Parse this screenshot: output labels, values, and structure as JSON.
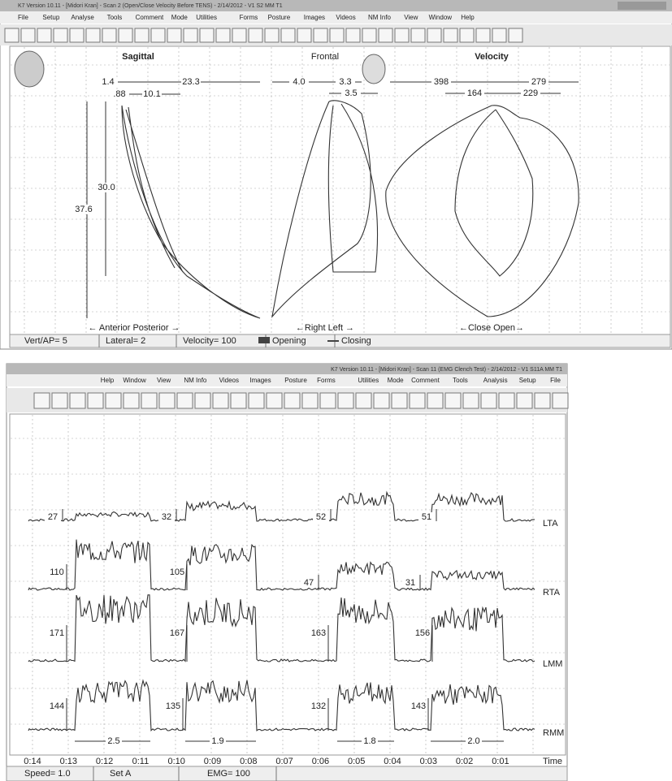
{
  "top_window": {
    "title": "K7 Version 10.11 - [Midori Kran] - Scan 2 (Open/Close Velocity Before TENS) - 2/14/2012 - V1 S2 MM T1",
    "menu": [
      "File",
      "Setup",
      "Analyse",
      "Tools",
      "Comment",
      "Mode",
      "Utilities",
      "Forms",
      "Posture",
      "Images",
      "Videos",
      "NM Info",
      "View",
      "Window",
      "Help"
    ],
    "panels": [
      {
        "title": "Sagittal",
        "axis_label": "← Anterior  Posterior →"
      },
      {
        "title": "Frontal",
        "axis_label": "←Right  Left →"
      },
      {
        "title": "Velocity",
        "axis_label": "←Close  Open→"
      }
    ],
    "measurements": [
      "1.4",
      "23.3",
      ".88",
      "10.1",
      "30.0",
      "37.6",
      "4.0",
      "3.3",
      "3.5",
      "398",
      "279",
      "164",
      "229"
    ],
    "status": [
      "Vert/AP= 5",
      "Lateral= 2",
      "Velocity= 100",
      "Opening",
      "Closing"
    ]
  },
  "bottom_window": {
    "title": "K7 Version 10.11 - [Midori Kran] - Scan 11 (EMG Clench Test) - 2/14/2012 - V1 S11A MM T1",
    "menu": [
      "File",
      "Setup",
      "Analysis",
      "Tools",
      "Comment",
      "Mode",
      "Utilities",
      "Forms",
      "Posture",
      "Images",
      "Videos",
      "NM Info",
      "View",
      "Window",
      "Help"
    ],
    "channels": [
      {
        "name": "LTA",
        "values": [
          "27",
          "32",
          "52",
          "51"
        ]
      },
      {
        "name": "RTA",
        "values": [
          "110",
          "105",
          "47",
          "31"
        ]
      },
      {
        "name": "LMM",
        "values": [
          "171",
          "167",
          "163",
          "156"
        ]
      },
      {
        "name": "RMM",
        "values": [
          "144",
          "135",
          "132",
          "143"
        ]
      }
    ],
    "durations": [
      "2.5",
      "1.9",
      "1.8",
      "2.0"
    ],
    "time_labels": [
      "0:14",
      "0:13",
      "0:12",
      "0:11",
      "0:10",
      "0:09",
      "0:08",
      "0:07",
      "0:06",
      "0:05",
      "0:04",
      "0:03",
      "0:02",
      "0:01"
    ],
    "time_axis": "Time",
    "status": [
      "Speed= 1.0",
      "Set A",
      "EMG= 100"
    ]
  }
}
